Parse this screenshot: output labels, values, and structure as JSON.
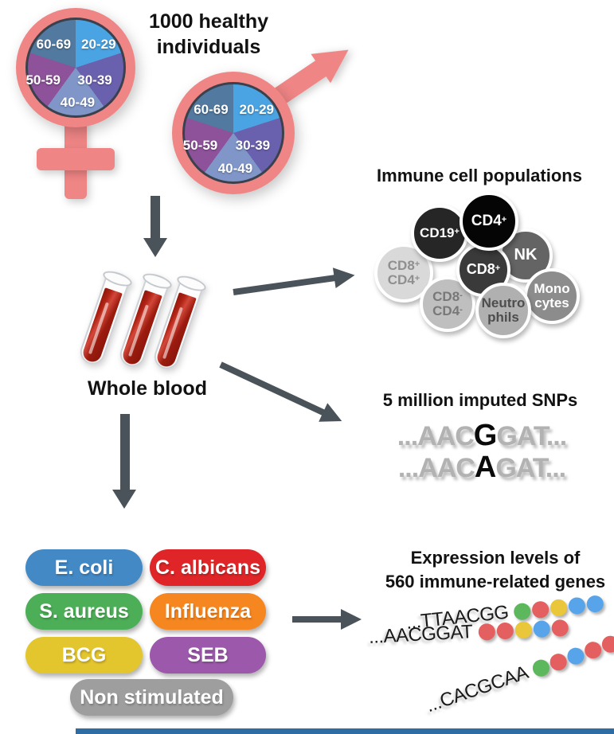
{
  "header": {
    "line1": "1000 healthy",
    "line2": "individuals"
  },
  "demographics": {
    "age_groups": [
      "20-29",
      "30-39",
      "40-49",
      "50-59",
      "60-69"
    ],
    "slice_colors": [
      "#4aa3e2",
      "#6a61ae",
      "#8096c8",
      "#8d5299",
      "#52799f"
    ]
  },
  "blood": {
    "label": "Whole blood"
  },
  "cells": {
    "title": "Immune cell populations",
    "items": [
      {
        "line1": "CD19",
        "sup1": "+",
        "bg": "#262626",
        "fg": "#ffffff"
      },
      {
        "line1": "CD4",
        "sup1": "+",
        "bg": "#050505",
        "fg": "#ffffff"
      },
      {
        "line1": "NK",
        "bg": "#646464",
        "fg": "#ffffff"
      },
      {
        "line1": "CD8",
        "sup1": "+",
        "bg": "#3a3a3a",
        "fg": "#ffffff"
      },
      {
        "line1": "CD8",
        "sup1": "+",
        "line2": "CD4",
        "sup2": "+",
        "bg": "#d9d9d9",
        "fg": "#8f8f8f"
      },
      {
        "line1": "CD8",
        "sup1": "-",
        "line2": "CD4",
        "sup2": "-",
        "bg": "#bfbfbf",
        "fg": "#787878"
      },
      {
        "line1": "Neutro",
        "line2": "phils",
        "bg": "#b0b0b0",
        "fg": "#4d4d4d"
      },
      {
        "line1": "Mono",
        "line2": "cytes",
        "bg": "#8c8c8c",
        "fg": "#ffffff"
      }
    ]
  },
  "snps": {
    "title": "5 million imputed SNPs",
    "rows": [
      {
        "prefix": "...AAC",
        "variant": "G",
        "suffix": "GAT..."
      },
      {
        "prefix": "...AAC",
        "variant": "A",
        "suffix": "GAT..."
      }
    ]
  },
  "stimuli": {
    "items": [
      {
        "label": "E. coli",
        "color": "#4289c6"
      },
      {
        "label": "C. albicans",
        "color": "#e02528"
      },
      {
        "label": "S. aureus",
        "color": "#4cae57"
      },
      {
        "label": "Influenza",
        "color": "#f6861f"
      },
      {
        "label": "BCG",
        "color": "#e3c52d"
      },
      {
        "label": "SEB",
        "color": "#9c59ab"
      },
      {
        "label": "Non stimulated",
        "color": "#9e9e9e"
      }
    ]
  },
  "expression": {
    "title_line1": "Expression levels of",
    "title_line2": "560 immune-related genes",
    "genes": [
      {
        "seq": "...TTAACGG",
        "dots": [
          "#5db75c",
          "#e45f5f",
          "#eac63a",
          "#58a4ea",
          "#58a4ea"
        ]
      },
      {
        "seq": "...AACGGAT",
        "dots": [
          "#e45f5f",
          "#e45f5f",
          "#eac63a",
          "#58a4ea",
          "#e45f5f"
        ]
      },
      {
        "seq": "...CACGCAA",
        "dots": [
          "#5db75c",
          "#e45f5f",
          "#58a4ea",
          "#e45f5f",
          "#e45f5f"
        ]
      }
    ]
  },
  "colors": {
    "symbol_pink": "#ef8585",
    "pie_rim": "#3a414d",
    "arrow": "#4a525a",
    "blood_red": "#b02315",
    "footer_bar": "#2e6ca4"
  }
}
